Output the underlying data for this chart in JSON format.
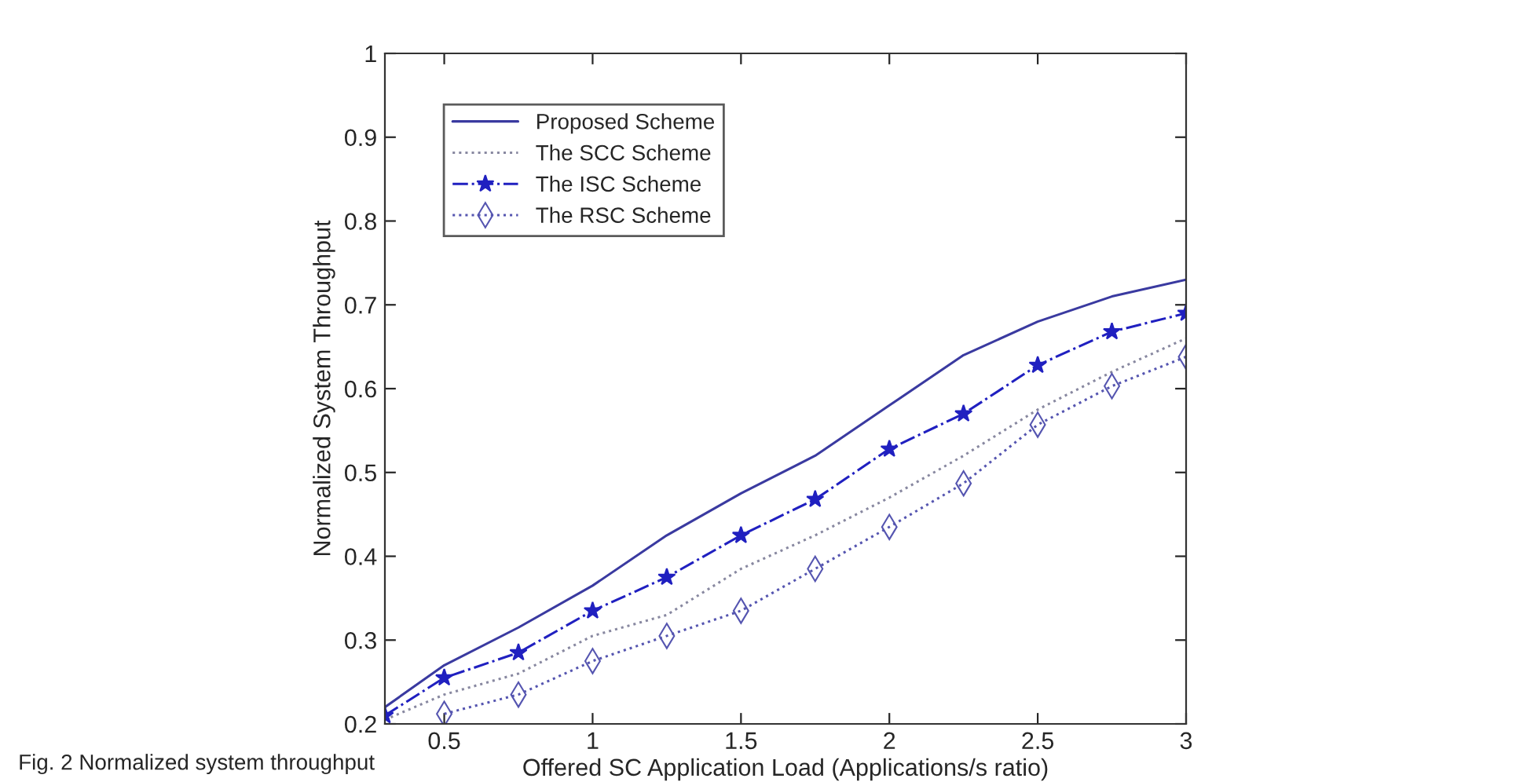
{
  "chart_data": {
    "type": "line",
    "xlabel": "Offered SC Application Load (Applications/s ratio)",
    "ylabel": "Normalized System Throughput",
    "annotations": [
      "Fig. 2 Normalized system throughput"
    ],
    "xlim": [
      0.3,
      3
    ],
    "xticks": [
      0.5,
      1,
      1.5,
      2,
      2.5,
      3
    ],
    "ylim": [
      0.2,
      1
    ],
    "yticks": [
      0.2,
      0.3,
      0.4,
      0.5,
      0.6,
      0.7,
      0.8,
      0.9,
      1
    ],
    "grid": false,
    "legend": "top left",
    "series": [
      {
        "name": "Proposed Scheme",
        "color": "#3a3aa0",
        "line_style": "solid",
        "marker": "none",
        "x": [
          0.3,
          0.5,
          0.75,
          1,
          1.25,
          1.5,
          1.75,
          2,
          2.25,
          2.5,
          2.75,
          3
        ],
        "values": [
          0.22,
          0.27,
          0.315,
          0.365,
          0.425,
          0.475,
          0.52,
          0.58,
          0.64,
          0.68,
          0.71,
          0.73
        ]
      },
      {
        "name": "The SCC Scheme",
        "color": "#8888a0",
        "line_style": "dotted",
        "marker": "none",
        "x": [
          0.3,
          0.5,
          0.75,
          1,
          1.25,
          1.5,
          1.75,
          2,
          2.25,
          2.5,
          2.75,
          3
        ],
        "values": [
          0.205,
          0.235,
          0.26,
          0.305,
          0.33,
          0.385,
          0.425,
          0.47,
          0.52,
          0.575,
          0.62,
          0.66
        ]
      },
      {
        "name": "The ISC Scheme",
        "color": "#2020c0",
        "line_style": "dashdot",
        "marker": "star",
        "x": [
          0.3,
          0.5,
          0.75,
          1,
          1.25,
          1.5,
          1.75,
          2,
          2.25,
          2.5,
          2.75,
          3
        ],
        "values": [
          0.21,
          0.255,
          0.285,
          0.335,
          0.375,
          0.425,
          0.468,
          0.528,
          0.57,
          0.628,
          0.668,
          0.69
        ]
      },
      {
        "name": "The RSC Scheme",
        "color": "#5555b0",
        "line_style": "dotted",
        "marker": "diamond",
        "x": [
          0.5,
          0.75,
          1,
          1.25,
          1.5,
          1.75,
          2,
          2.25,
          2.5,
          2.75,
          3
        ],
        "values": [
          0.212,
          0.235,
          0.275,
          0.305,
          0.335,
          0.385,
          0.435,
          0.487,
          0.557,
          0.603,
          0.638
        ]
      }
    ]
  }
}
